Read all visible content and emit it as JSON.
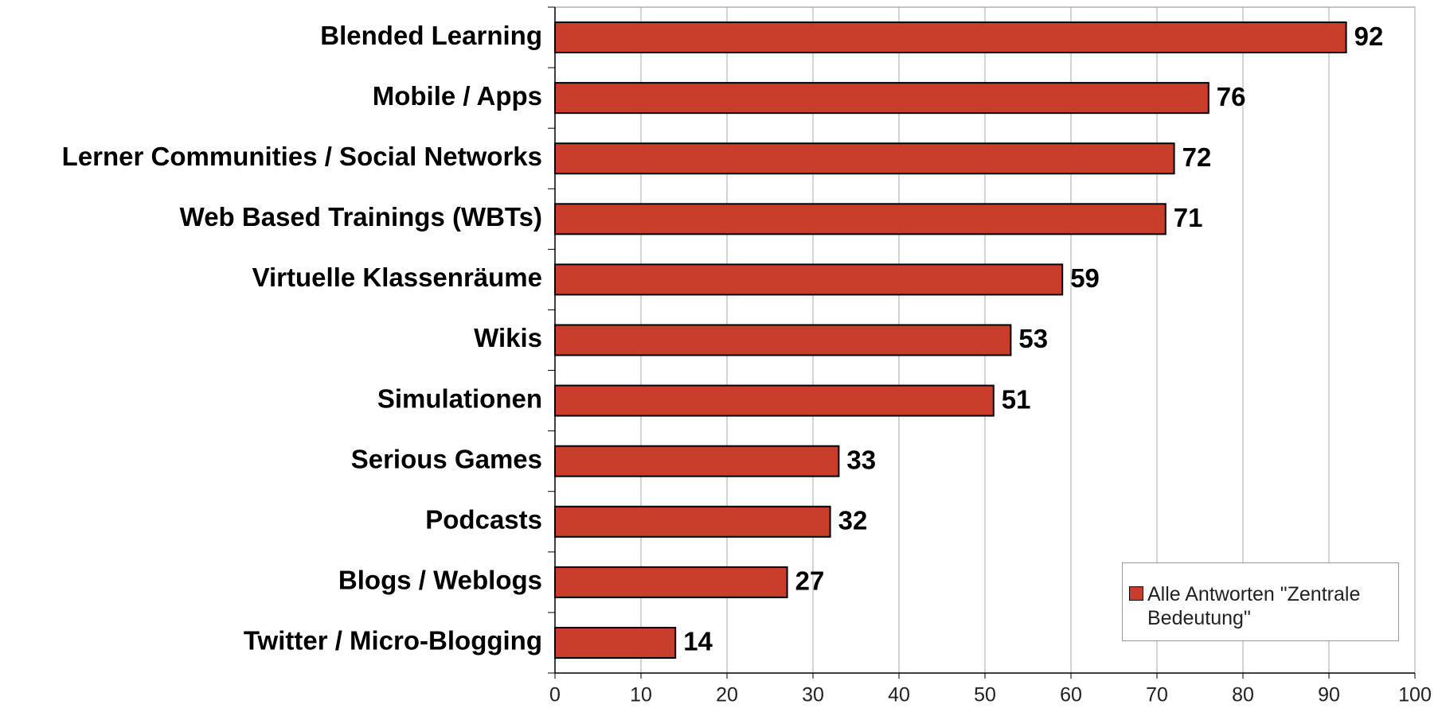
{
  "chart_data": {
    "type": "bar",
    "orientation": "horizontal",
    "categories": [
      "Blended Learning",
      "Mobile / Apps",
      "Lerner Communities / Social Networks",
      "Web Based Trainings (WBTs)",
      "Virtuelle Klassenräume",
      "Wikis",
      "Simulationen",
      "Serious Games",
      "Podcasts",
      "Blogs / Weblogs",
      "Twitter / Micro-Blogging"
    ],
    "series": [
      {
        "name": "Alle Antworten \"Zentrale Bedeutung\"",
        "color": "#c93d2b",
        "values": [
          92,
          76,
          72,
          71,
          59,
          53,
          51,
          33,
          32,
          27,
          14
        ]
      }
    ],
    "xlim": [
      0,
      100
    ],
    "xticks": [
      0,
      10,
      20,
      30,
      40,
      50,
      60,
      70,
      80,
      90,
      100
    ],
    "grid": true,
    "legend": "lower right"
  }
}
